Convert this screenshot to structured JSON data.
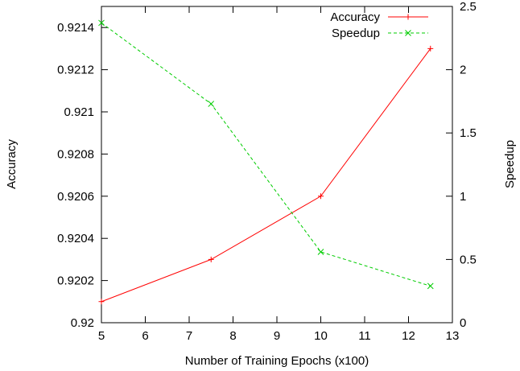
{
  "chart_data": {
    "type": "line",
    "xlabel": "Number of Training Epochs (x100)",
    "ylabel": "Accuracy",
    "y2label": "Speedup",
    "xlim": [
      5,
      13
    ],
    "ylim": [
      0.92,
      0.9215
    ],
    "y2lim": [
      0,
      2.5
    ],
    "xticks": [
      "5",
      "6",
      "7",
      "8",
      "9",
      "10",
      "11",
      "12",
      "13"
    ],
    "yticks": [
      "0.92",
      "0.9202",
      "0.9204",
      "0.9206",
      "0.9208",
      "0.921",
      "0.9212",
      "0.9214"
    ],
    "y2ticks": [
      "0",
      "0.5",
      "1",
      "1.5",
      "2",
      "2.5"
    ],
    "grid": false,
    "legend_position": "top-right",
    "series": [
      {
        "name": "Accuracy",
        "axis": "left",
        "color": "#ff0000",
        "dash": "solid",
        "marker": "plus",
        "x": [
          5,
          7.5,
          10,
          12.5
        ],
        "y": [
          0.9201,
          0.9203,
          0.9206,
          0.9213
        ]
      },
      {
        "name": "Speedup",
        "axis": "right",
        "color": "#00cc00",
        "dash": "dashed",
        "marker": "cross",
        "x": [
          5,
          7.5,
          10,
          12.5
        ],
        "y": [
          2.37,
          1.73,
          0.56,
          0.29
        ]
      }
    ]
  }
}
